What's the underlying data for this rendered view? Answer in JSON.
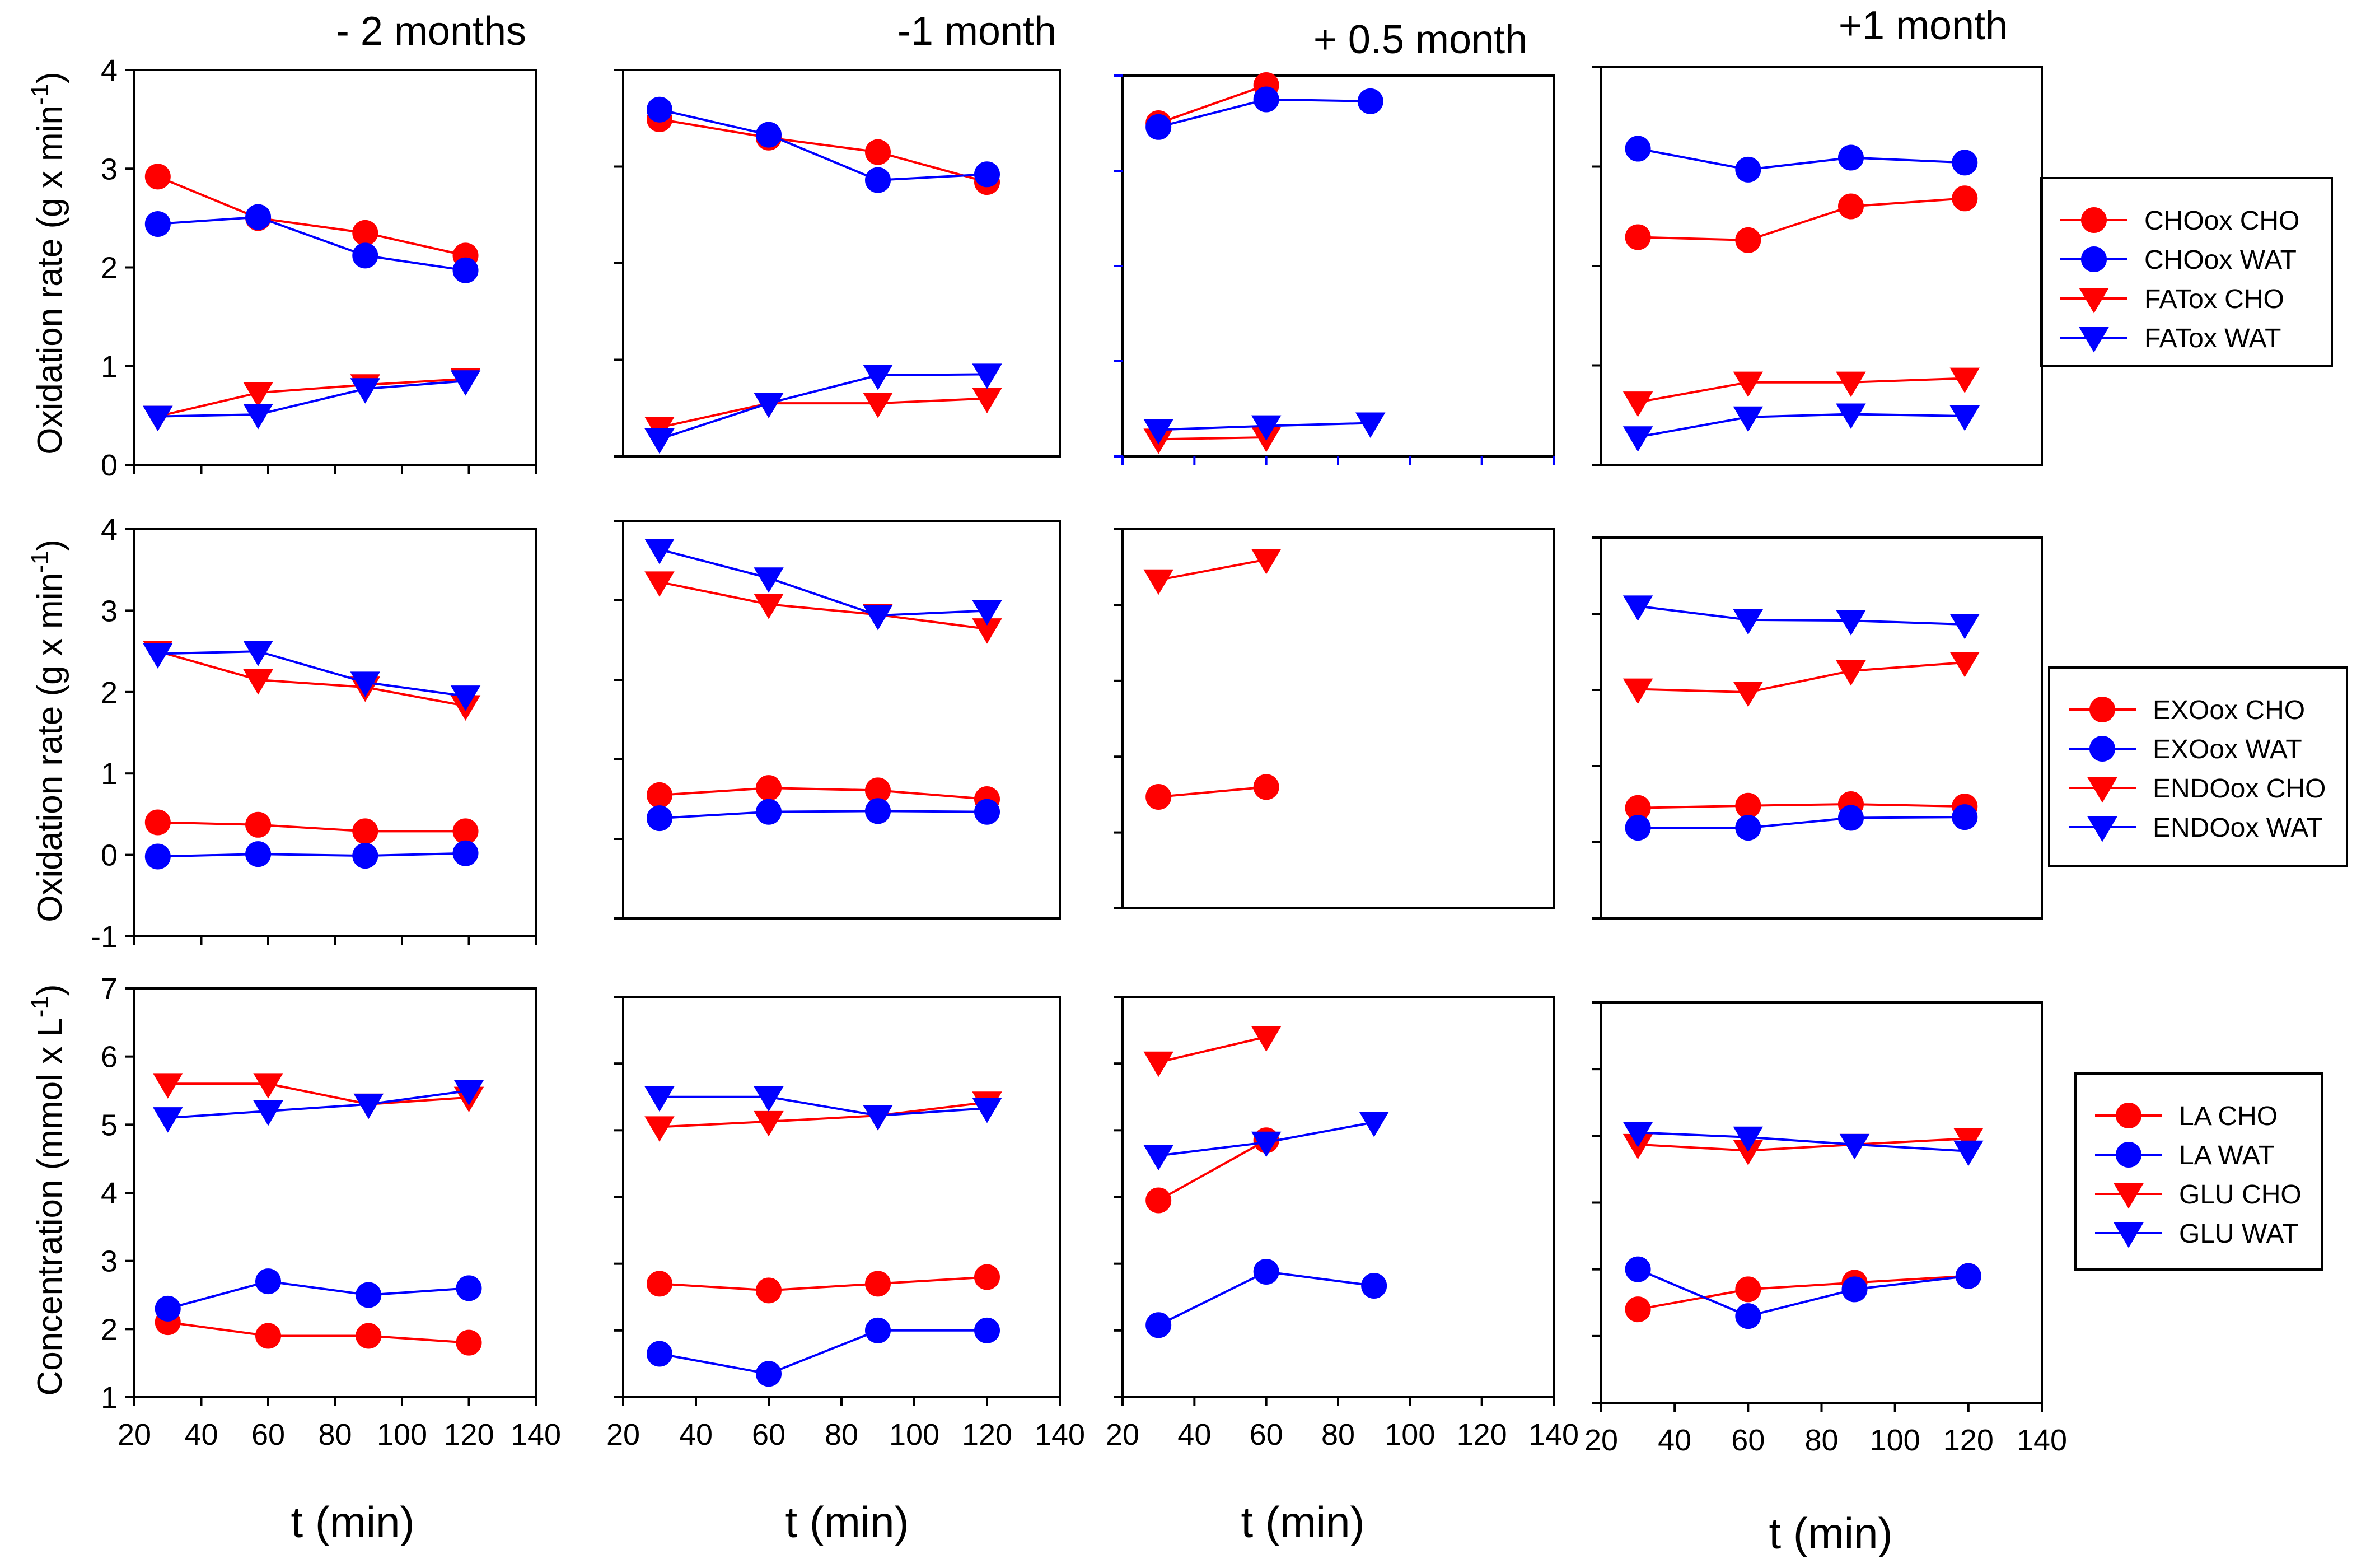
{
  "figure": {
    "columns": [
      "- 2 months",
      "-1 month",
      "+ 0.5 month",
      "+1 month"
    ],
    "xlabel": "t (min)",
    "x_ticks": [
      "20",
      "40",
      "60",
      "80",
      "100",
      "120",
      "140"
    ],
    "colors": {
      "cho": "#ff0000",
      "wat": "#0000ff"
    }
  },
  "chart_data": [
    {
      "type": "line",
      "row": "oxidation",
      "ylabel": "Oxidation rate (g x min-1)",
      "ylim": [
        0,
        4
      ],
      "xlim": [
        20,
        140
      ],
      "y_ticks": [
        "0",
        "1",
        "2",
        "3",
        "4"
      ],
      "legend": [
        "CHOox CHO",
        "CHOox WAT",
        "FATox CHO",
        "FATox WAT"
      ],
      "panels": [
        {
          "column": "- 2 months",
          "series": [
            {
              "name": "CHOox CHO",
              "x": [
                27,
                57,
                89,
                119
              ],
              "y": [
                2.92,
                2.5,
                2.35,
                2.12
              ]
            },
            {
              "name": "CHOox WAT",
              "x": [
                27,
                57,
                89,
                119
              ],
              "y": [
                2.44,
                2.51,
                2.12,
                1.97
              ]
            },
            {
              "name": "FATox CHO",
              "x": [
                27,
                57,
                89,
                119
              ],
              "y": [
                0.49,
                0.73,
                0.81,
                0.87
              ]
            },
            {
              "name": "FATox WAT",
              "x": [
                27,
                57,
                89,
                119
              ],
              "y": [
                0.49,
                0.51,
                0.77,
                0.85
              ]
            }
          ]
        },
        {
          "column": "-1 month",
          "series": [
            {
              "name": "CHOox CHO",
              "x": [
                30,
                60,
                90,
                120
              ],
              "y": [
                3.49,
                3.3,
                3.15,
                2.84
              ]
            },
            {
              "name": "CHOox WAT",
              "x": [
                30,
                60,
                90,
                120
              ],
              "y": [
                3.59,
                3.33,
                2.86,
                2.92
              ]
            },
            {
              "name": "FATox CHO",
              "x": [
                30,
                60,
                90,
                120
              ],
              "y": [
                0.3,
                0.55,
                0.55,
                0.6
              ]
            },
            {
              "name": "FATox WAT",
              "x": [
                30,
                60,
                90,
                120
              ],
              "y": [
                0.18,
                0.55,
                0.84,
                0.85
              ]
            }
          ]
        },
        {
          "column": "+ 0.5 month",
          "series": [
            {
              "name": "CHOox CHO",
              "x": [
                30,
                60
              ],
              "y": [
                3.5,
                3.9
              ]
            },
            {
              "name": "CHOox WAT",
              "x": [
                30,
                60,
                89
              ],
              "y": [
                3.46,
                3.75,
                3.73
              ]
            },
            {
              "name": "FATox CHO",
              "x": [
                30,
                60
              ],
              "y": [
                0.18,
                0.2
              ]
            },
            {
              "name": "FATox WAT",
              "x": [
                30,
                60,
                89
              ],
              "y": [
                0.28,
                0.32,
                0.35
              ]
            }
          ]
        },
        {
          "column": "+1 month",
          "series": [
            {
              "name": "CHOox CHO",
              "x": [
                30,
                60,
                88,
                119
              ],
              "y": [
                2.29,
                2.26,
                2.6,
                2.68
              ]
            },
            {
              "name": "CHOox WAT",
              "x": [
                30,
                60,
                88,
                119
              ],
              "y": [
                3.18,
                2.97,
                3.09,
                3.04
              ]
            },
            {
              "name": "FATox CHO",
              "x": [
                30,
                60,
                88,
                119
              ],
              "y": [
                0.63,
                0.83,
                0.83,
                0.87
              ]
            },
            {
              "name": "FATox WAT",
              "x": [
                30,
                60,
                88,
                119
              ],
              "y": [
                0.28,
                0.48,
                0.51,
                0.49
              ]
            }
          ]
        }
      ]
    },
    {
      "type": "line",
      "row": "exo_endo",
      "ylabel": "Oxidation rate (g x min-1)",
      "ylim": [
        -1,
        4
      ],
      "xlim": [
        20,
        140
      ],
      "y_ticks": [
        "-1",
        "0",
        "1",
        "2",
        "3",
        "4"
      ],
      "legend": [
        "EXOox CHO",
        "EXOox WAT",
        "ENDOox CHO",
        "ENDOox WAT"
      ],
      "panels": [
        {
          "column": "- 2 months",
          "series": [
            {
              "name": "EXOox CHO",
              "x": [
                27,
                57,
                89,
                119
              ],
              "y": [
                0.4,
                0.37,
                0.29,
                0.29
              ]
            },
            {
              "name": "EXOox WAT",
              "x": [
                27,
                57,
                89,
                119
              ],
              "y": [
                -0.02,
                0.01,
                -0.01,
                0.02
              ]
            },
            {
              "name": "ENDOox CHO",
              "x": [
                27,
                57,
                89,
                119
              ],
              "y": [
                2.5,
                2.15,
                2.06,
                1.83
              ]
            },
            {
              "name": "ENDOox WAT",
              "x": [
                27,
                57,
                89,
                119
              ],
              "y": [
                2.47,
                2.5,
                2.12,
                1.95
              ]
            }
          ]
        },
        {
          "column": "-1 month",
          "series": [
            {
              "name": "EXOox CHO",
              "x": [
                30,
                60,
                90,
                120
              ],
              "y": [
                0.55,
                0.64,
                0.61,
                0.5
              ]
            },
            {
              "name": "EXOox WAT",
              "x": [
                30,
                60,
                90,
                120
              ],
              "y": [
                0.26,
                0.34,
                0.35,
                0.34
              ]
            },
            {
              "name": "ENDOox CHO",
              "x": [
                30,
                60,
                90,
                120
              ],
              "y": [
                3.23,
                2.95,
                2.82,
                2.64
              ]
            },
            {
              "name": "ENDOox WAT",
              "x": [
                30,
                60,
                90,
                120
              ],
              "y": [
                3.64,
                3.28,
                2.81,
                2.87
              ]
            }
          ]
        },
        {
          "column": "+ 0.5 month",
          "series": [
            {
              "name": "EXOox CHO",
              "x": [
                30,
                60
              ],
              "y": [
                0.47,
                0.6
              ]
            },
            {
              "name": "ENDOox CHO",
              "x": [
                30,
                60
              ],
              "y": [
                3.33,
                3.6
              ]
            }
          ]
        },
        {
          "column": "+1 month",
          "series": [
            {
              "name": "EXOox CHO",
              "x": [
                30,
                60,
                88,
                119
              ],
              "y": [
                0.45,
                0.48,
                0.5,
                0.47
              ]
            },
            {
              "name": "EXOox WAT",
              "x": [
                30,
                60,
                88,
                119
              ],
              "y": [
                0.19,
                0.19,
                0.32,
                0.33
              ]
            },
            {
              "name": "ENDOox CHO",
              "x": [
                30,
                60,
                88,
                119
              ],
              "y": [
                2.01,
                1.97,
                2.25,
                2.36
              ]
            },
            {
              "name": "ENDOox WAT",
              "x": [
                30,
                60,
                88,
                119
              ],
              "y": [
                3.1,
                2.92,
                2.91,
                2.86
              ]
            }
          ]
        }
      ]
    },
    {
      "type": "line",
      "row": "concentration",
      "ylabel": "Concentration (mmol x L-1)",
      "ylim": [
        1,
        7
      ],
      "xlim": [
        20,
        140
      ],
      "y_ticks": [
        "1",
        "2",
        "3",
        "4",
        "5",
        "6",
        "7"
      ],
      "legend": [
        "LA CHO",
        "LA WAT",
        "GLU CHO",
        "GLU WAT"
      ],
      "panels": [
        {
          "column": "- 2 months",
          "series": [
            {
              "name": "LA CHO",
              "x": [
                30,
                60,
                90,
                120
              ],
              "y": [
                2.1,
                1.9,
                1.9,
                1.8
              ]
            },
            {
              "name": "LA WAT",
              "x": [
                30,
                60,
                90,
                120
              ],
              "y": [
                2.3,
                2.7,
                2.5,
                2.6
              ]
            },
            {
              "name": "GLU CHO",
              "x": [
                30,
                60,
                90,
                120
              ],
              "y": [
                5.6,
                5.6,
                5.3,
                5.4
              ]
            },
            {
              "name": "GLU WAT",
              "x": [
                30,
                60,
                90,
                120
              ],
              "y": [
                5.1,
                5.2,
                5.3,
                5.5
              ]
            }
          ]
        },
        {
          "column": "-1 month",
          "series": [
            {
              "name": "LA CHO",
              "x": [
                30,
                60,
                90,
                120
              ],
              "y": [
                2.7,
                2.6,
                2.7,
                2.8
              ]
            },
            {
              "name": "LA WAT",
              "x": [
                30,
                60,
                90,
                120
              ],
              "y": [
                1.65,
                1.35,
                2.0,
                2.0
              ]
            },
            {
              "name": "GLU CHO",
              "x": [
                30,
                60,
                90,
                120
              ],
              "y": [
                5.05,
                5.13,
                5.22,
                5.42
              ]
            },
            {
              "name": "GLU WAT",
              "x": [
                30,
                60,
                90,
                120
              ],
              "y": [
                5.5,
                5.5,
                5.22,
                5.33
              ]
            }
          ]
        },
        {
          "column": "+ 0.5 month",
          "series": [
            {
              "name": "LA CHO",
              "x": [
                30,
                60
              ],
              "y": [
                3.95,
                4.85
              ]
            },
            {
              "name": "LA WAT",
              "x": [
                30,
                60,
                90
              ],
              "y": [
                2.08,
                2.88,
                2.67
              ]
            },
            {
              "name": "GLU CHO",
              "x": [
                30,
                60
              ],
              "y": [
                6.02,
                6.4
              ]
            },
            {
              "name": "GLU WAT",
              "x": [
                30,
                60,
                90
              ],
              "y": [
                4.62,
                4.82,
                5.12
              ]
            }
          ]
        },
        {
          "column": "+1 month",
          "series": [
            {
              "name": "LA CHO",
              "x": [
                30,
                60,
                89,
                120
              ],
              "y": [
                2.4,
                2.7,
                2.8,
                2.9
              ]
            },
            {
              "name": "LA WAT",
              "x": [
                30,
                60,
                89,
                120
              ],
              "y": [
                3.0,
                2.3,
                2.7,
                2.9
              ]
            },
            {
              "name": "GLU CHO",
              "x": [
                30,
                60,
                89,
                120
              ],
              "y": [
                4.87,
                4.78,
                4.87,
                4.96
              ]
            },
            {
              "name": "GLU WAT",
              "x": [
                30,
                60,
                89,
                120
              ],
              "y": [
                5.05,
                4.98,
                4.87,
                4.77
              ]
            }
          ]
        }
      ]
    }
  ]
}
